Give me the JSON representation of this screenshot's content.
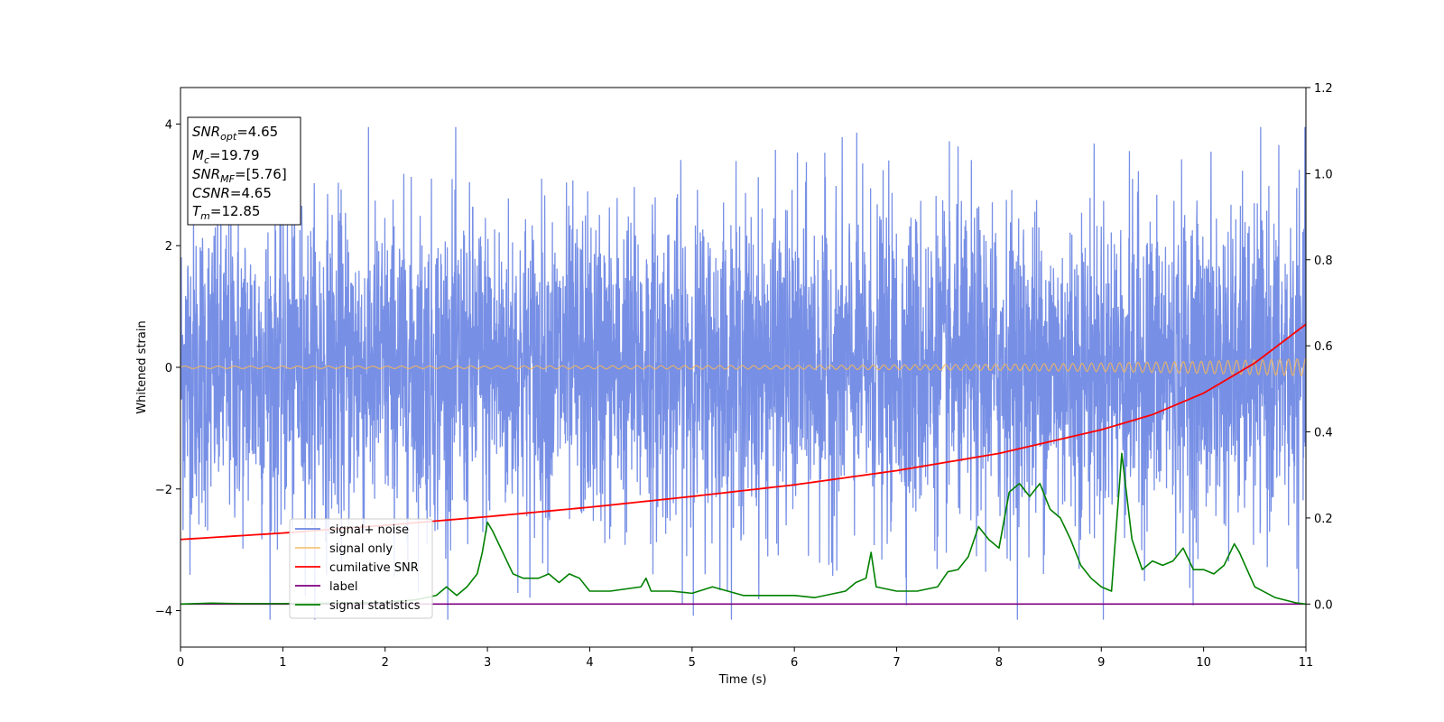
{
  "chart_data": {
    "type": "line",
    "xlabel": "Time (s)",
    "ylabel": "Whitened strain",
    "xlim": [
      0,
      11
    ],
    "ylim": [
      -4.6,
      4.6
    ],
    "y2lim": [
      -0.1,
      1.2
    ],
    "x_ticks": [
      "0",
      "1",
      "2",
      "3",
      "4",
      "5",
      "6",
      "7",
      "8",
      "9",
      "10",
      "11"
    ],
    "y_ticks": [
      "4",
      "2",
      "0",
      "−2",
      "−4"
    ],
    "y2_ticks": [
      "1.2",
      "1.0",
      "0.8",
      "0.6",
      "0.4",
      "0.2",
      "0.0"
    ],
    "annotation": {
      "lines": [
        {
          "main": "SNR",
          "sub": "opt",
          "value": "=4.65"
        },
        {
          "main": "M",
          "sub": "c",
          "value": "=19.79"
        },
        {
          "main": "SNR",
          "sub": "MF",
          "value": "=[5.76]"
        },
        {
          "main": "CSNR",
          "sub": "",
          "value": "=4.65"
        },
        {
          "main": "T",
          "sub": "m",
          "value": "=12.85"
        }
      ]
    },
    "legend_position": "lower-left",
    "series": [
      {
        "name": "signal+ noise",
        "color": "#6b86e3",
        "axis": "left",
        "description": "noisy whitened strain, roughly within ±2.5 with spikes to ±3.9",
        "x_range": [
          0,
          11
        ],
        "typical_amplitude": 1.3,
        "peak_max": 3.95,
        "peak_min": -4.15
      },
      {
        "name": "signal only",
        "color": "#f5b75a",
        "axis": "left",
        "x": [
          0,
          2,
          4,
          6,
          7,
          8,
          9,
          10,
          10.5,
          11
        ],
        "amplitude": [
          0.02,
          0.02,
          0.025,
          0.03,
          0.04,
          0.05,
          0.07,
          0.1,
          0.12,
          0.14
        ]
      },
      {
        "name": "cumilative SNR",
        "color": "#ff0000",
        "axis": "right",
        "x": [
          0,
          1,
          2,
          3,
          4,
          5,
          6,
          7,
          8,
          9,
          9.5,
          10,
          10.5,
          11
        ],
        "y": [
          0.15,
          0.165,
          0.183,
          0.203,
          0.225,
          0.25,
          0.277,
          0.31,
          0.35,
          0.405,
          0.44,
          0.49,
          0.56,
          0.65
        ]
      },
      {
        "name": "label",
        "color": "#800080",
        "axis": "right",
        "x": [
          0,
          11
        ],
        "y": [
          0,
          0
        ]
      },
      {
        "name": "signal statistics",
        "color": "#008000",
        "axis": "right",
        "x": [
          0,
          0.3,
          0.6,
          1.0,
          1.5,
          2.0,
          2.3,
          2.5,
          2.6,
          2.7,
          2.8,
          2.9,
          2.95,
          3.0,
          3.05,
          3.15,
          3.25,
          3.35,
          3.5,
          3.6,
          3.7,
          3.8,
          3.9,
          4.0,
          4.2,
          4.5,
          4.55,
          4.6,
          4.8,
          5.0,
          5.2,
          5.5,
          5.7,
          6.0,
          6.2,
          6.5,
          6.6,
          6.7,
          6.75,
          6.8,
          7.0,
          7.2,
          7.4,
          7.5,
          7.6,
          7.7,
          7.8,
          7.9,
          8.0,
          8.1,
          8.2,
          8.3,
          8.4,
          8.5,
          8.6,
          8.7,
          8.8,
          8.9,
          9.0,
          9.1,
          9.2,
          9.3,
          9.4,
          9.5,
          9.6,
          9.7,
          9.8,
          9.9,
          10.0,
          10.1,
          10.2,
          10.3,
          10.35,
          10.5,
          10.7,
          10.9,
          11.0
        ],
        "y": [
          0.0,
          0.002,
          0.001,
          0.001,
          0.002,
          0.004,
          0.01,
          0.02,
          0.04,
          0.02,
          0.04,
          0.07,
          0.12,
          0.19,
          0.17,
          0.12,
          0.07,
          0.06,
          0.06,
          0.07,
          0.05,
          0.07,
          0.06,
          0.03,
          0.03,
          0.04,
          0.06,
          0.03,
          0.03,
          0.025,
          0.04,
          0.02,
          0.02,
          0.02,
          0.015,
          0.03,
          0.05,
          0.06,
          0.12,
          0.04,
          0.03,
          0.03,
          0.04,
          0.075,
          0.08,
          0.11,
          0.18,
          0.15,
          0.13,
          0.26,
          0.28,
          0.25,
          0.28,
          0.22,
          0.2,
          0.15,
          0.09,
          0.06,
          0.04,
          0.03,
          0.35,
          0.15,
          0.08,
          0.1,
          0.09,
          0.1,
          0.13,
          0.08,
          0.08,
          0.07,
          0.09,
          0.14,
          0.12,
          0.04,
          0.015,
          0.003,
          0.0
        ]
      }
    ]
  }
}
